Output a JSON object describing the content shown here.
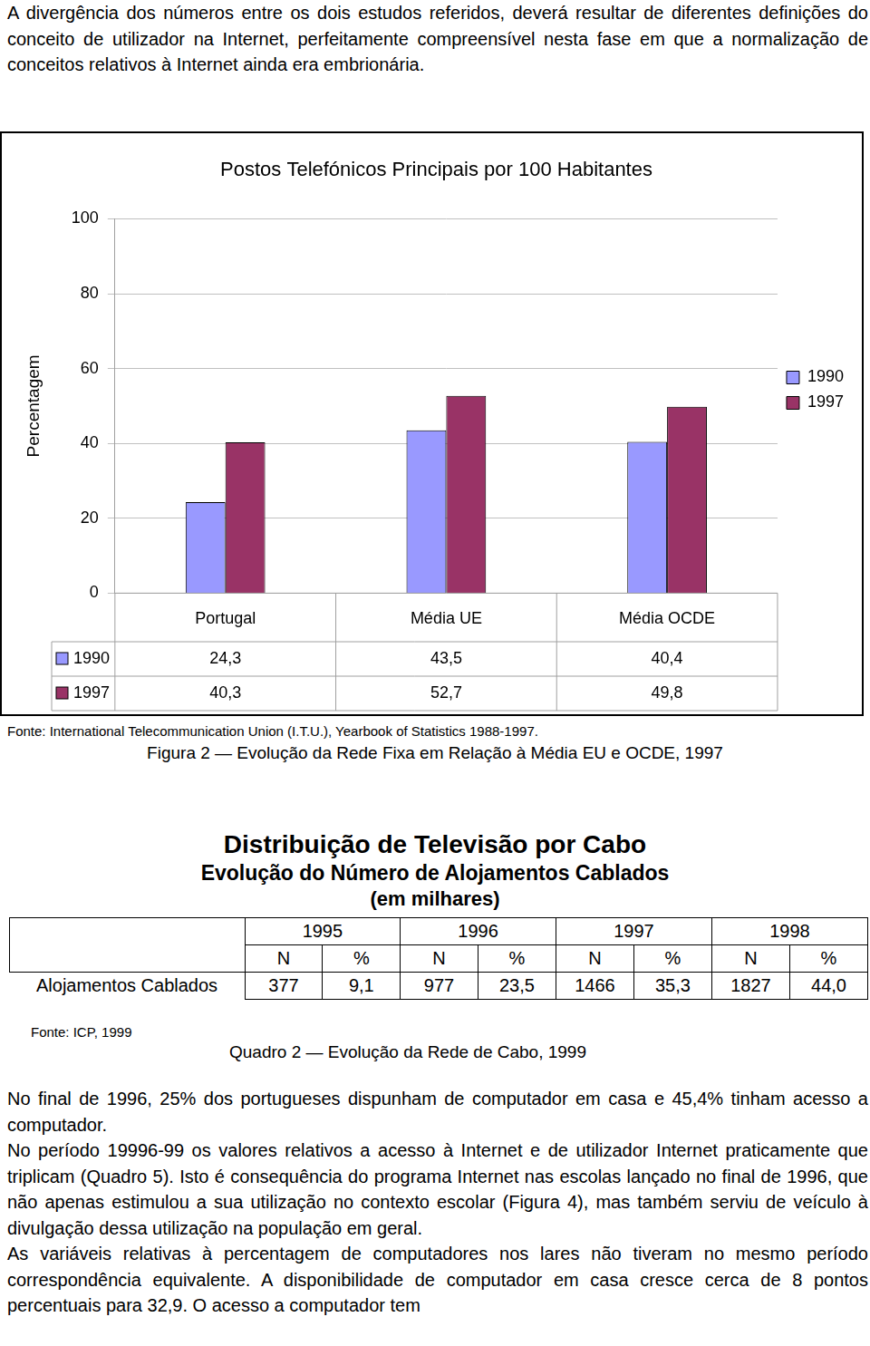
{
  "intro_paragraph": "A divergência dos números entre os dois estudos referidos, deverá resultar de diferentes definições do conceito de utilizador na Internet, perfeitamente compreensível nesta fase em que a normalização de conceitos relativos à Internet ainda era embrionária.",
  "chart_data": {
    "type": "bar",
    "title": "Postos Telefónicos Principais por 100 Habitantes",
    "y_label": "Percentagem",
    "categories": [
      "Portugal",
      "Média UE",
      "Média OCDE"
    ],
    "series": [
      {
        "name": "1990",
        "color": "#9999ff",
        "values": [
          24.3,
          43.5,
          40.4
        ],
        "value_labels": [
          "24,3",
          "43,5",
          "40,4"
        ]
      },
      {
        "name": "1997",
        "color": "#993366",
        "values": [
          40.3,
          52.7,
          49.8
        ],
        "value_labels": [
          "40,3",
          "52,7",
          "49,8"
        ]
      }
    ],
    "ylim": [
      0,
      100
    ],
    "yticks": [
      0,
      20,
      40,
      60,
      80,
      100
    ],
    "grid": true,
    "legend": "right"
  },
  "figure_source": "Fonte: International Telecommunication Union (I.T.U.), Yearbook of Statistics 1988-1997.",
  "figure_caption": "Figura 2 — Evolução da Rede Fixa em Relação à Média EU e OCDE, 1997",
  "cable_table": {
    "title": "Distribuição de Televisão por Cabo",
    "subtitle": "Evolução do Número de Alojamentos Cablados",
    "unit": "(em milhares)",
    "years": [
      "1995",
      "1996",
      "1997",
      "1998"
    ],
    "subheaders": [
      "N",
      "%"
    ],
    "row_label": "Alojamentos Cablados",
    "cells": [
      "377",
      "9,1",
      "977",
      "23,5",
      "1466",
      "35,3",
      "1827",
      "44,0"
    ],
    "source": "Fonte: ICP, 1999",
    "caption": "Quadro 2 — Evolução da Rede de Cabo, 1999"
  },
  "paragraphs": [
    "No final de 1996, 25% dos portugueses dispunham de computador em casa e 45,4% tinham acesso a computador.",
    "No período 19996-99 os valores relativos a acesso à Internet e de utilizador Internet praticamente que triplicam (Quadro 5). Isto é consequência do programa Internet nas escolas lançado no final de 1996, que não apenas estimulou a sua utilização no contexto escolar (Figura 4), mas também serviu de veículo à divulgação dessa utilização na população em geral.",
    "As variáveis relativas à percentagem de computadores nos lares não tiveram no mesmo período correspondência equivalente. A disponibilidade de computador em casa cresce cerca de 8 pontos percentuais para 32,9. O acesso a computador tem"
  ]
}
